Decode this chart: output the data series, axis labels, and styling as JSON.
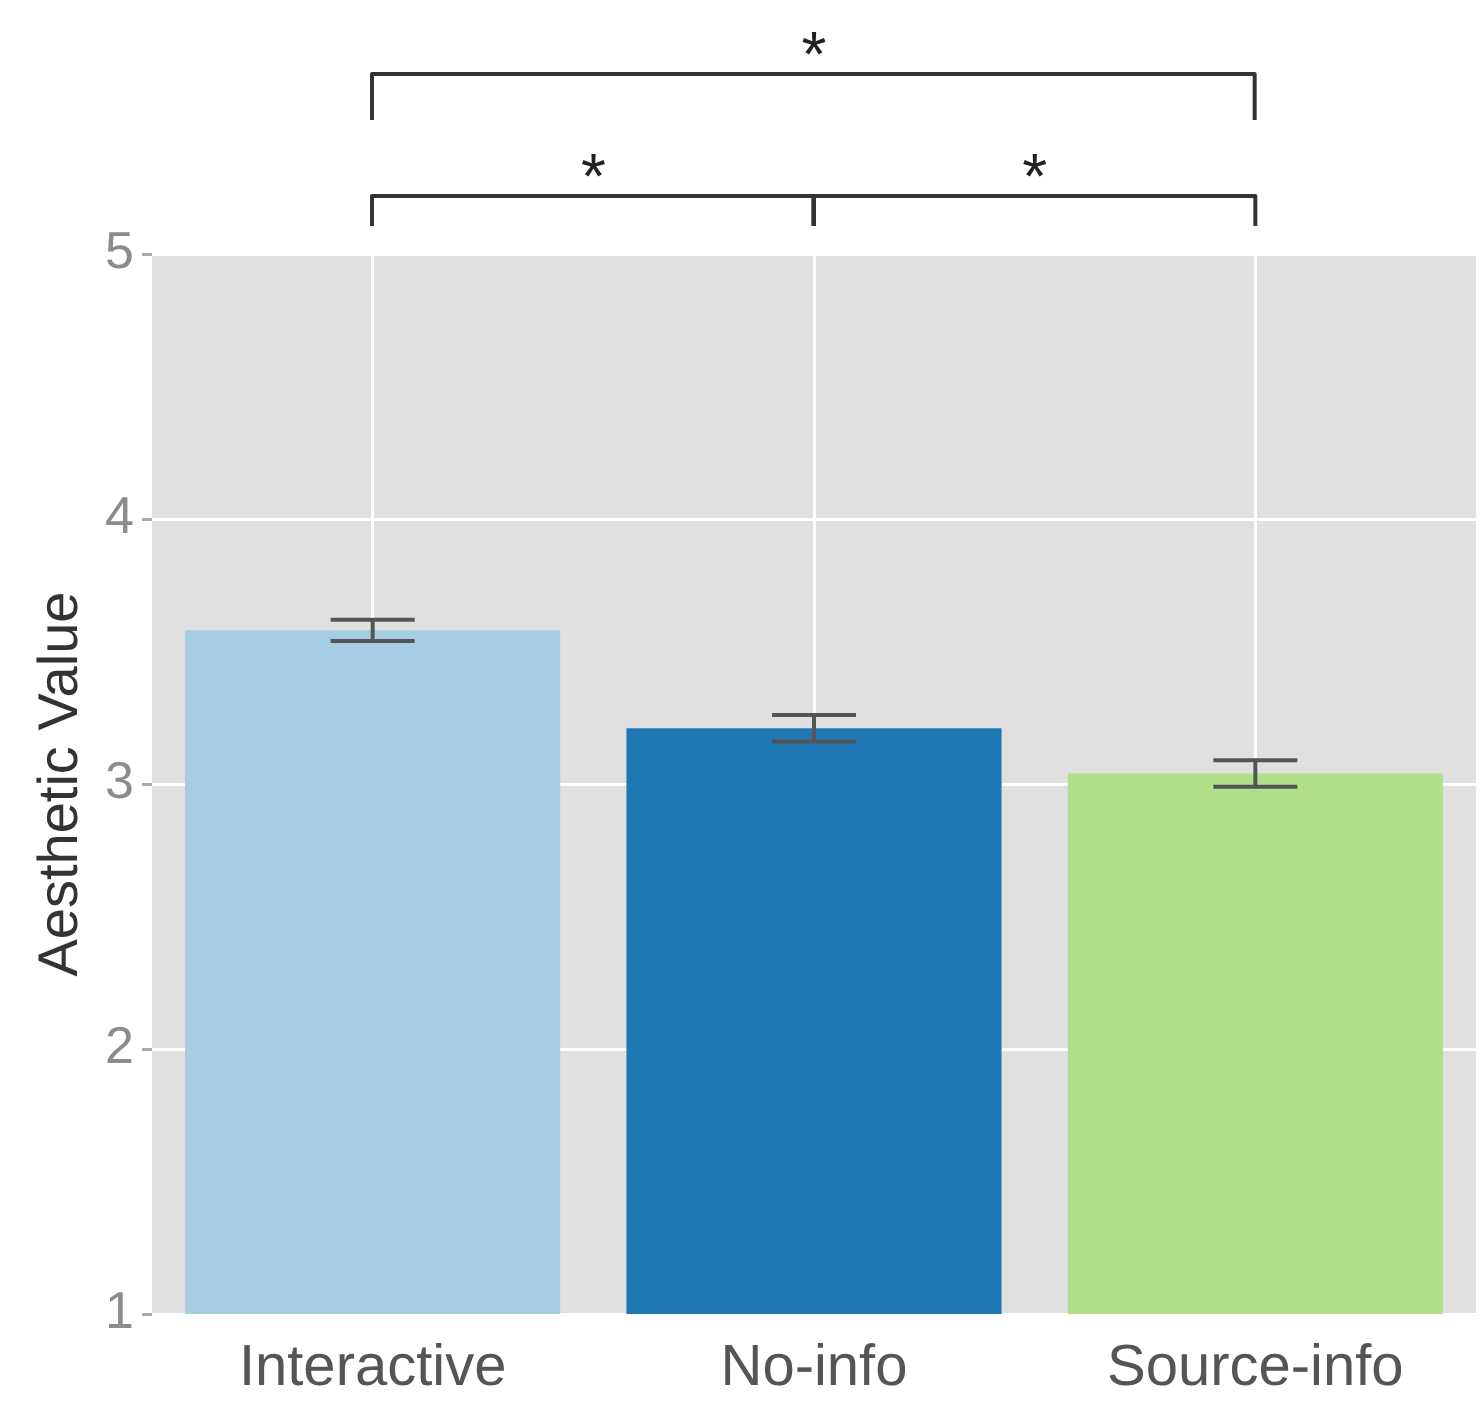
{
  "chart_data": {
    "type": "bar",
    "ylabel": "Aesthetic Value",
    "categories": [
      "Interactive",
      "No-info",
      "Source-info"
    ],
    "values": [
      3.58,
      3.21,
      3.04
    ],
    "colors": [
      "#a6cee3",
      "#1f78b4",
      "#b2df8a"
    ],
    "errors": [
      0.04,
      0.05,
      0.05
    ],
    "ylim": [
      1,
      5
    ],
    "yticks": [
      1,
      2,
      3,
      4,
      5
    ],
    "grid": true,
    "annotations": [
      "*",
      "*",
      "*"
    ]
  }
}
